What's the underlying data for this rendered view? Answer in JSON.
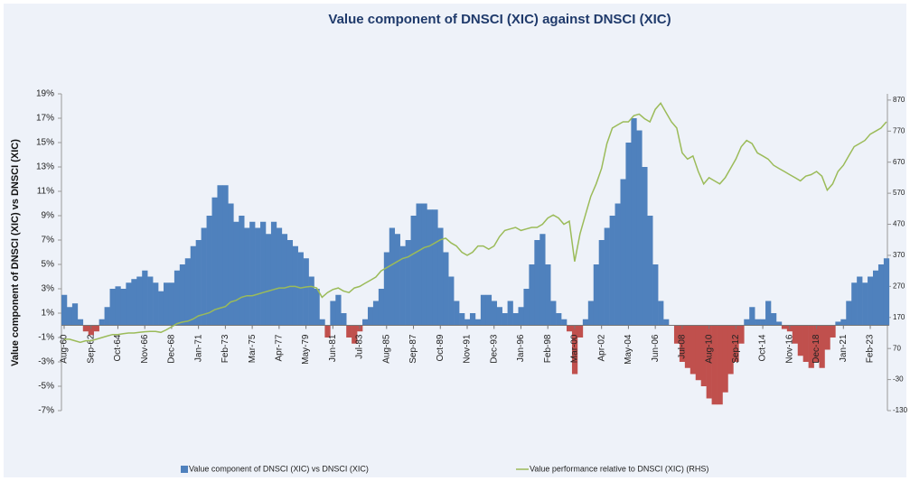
{
  "chart_data": {
    "type": "bar_line",
    "title": "Value component of DNSCI (XIC) against DNSCI (XIC)",
    "y_axis_title": "Value component of DNSCI (XIC) vs DNSCI (XIC)",
    "categories": [
      "Aug-60",
      null,
      null,
      null,
      null,
      "Sep-62",
      null,
      null,
      null,
      null,
      "Oct-64",
      null,
      null,
      null,
      null,
      "Nov-66",
      null,
      null,
      null,
      null,
      "Dec-68",
      null,
      null,
      null,
      null,
      "Jan-71",
      null,
      null,
      null,
      null,
      "Feb-73",
      null,
      null,
      null,
      null,
      "Mar-75",
      null,
      null,
      null,
      null,
      "Apr-77",
      null,
      null,
      null,
      null,
      "May-79",
      null,
      null,
      null,
      null,
      "Jun-81",
      null,
      null,
      null,
      null,
      "Jul-83",
      null,
      null,
      null,
      null,
      "Aug-85",
      null,
      null,
      null,
      null,
      "Sep-87",
      null,
      null,
      null,
      null,
      "Oct-89",
      null,
      null,
      null,
      null,
      "Nov-91",
      null,
      null,
      null,
      null,
      "Dec-93",
      null,
      null,
      null,
      null,
      "Jan-96",
      null,
      null,
      null,
      null,
      "Feb-98",
      null,
      null,
      null,
      null,
      "Mar-00",
      null,
      null,
      null,
      null,
      "Apr-02",
      null,
      null,
      null,
      null,
      "May-04",
      null,
      null,
      null,
      null,
      "Jun-06",
      null,
      null,
      null,
      null,
      "Jul-08",
      null,
      null,
      null,
      null,
      "Aug-10",
      null,
      null,
      null,
      null,
      "Sep-12",
      null,
      null,
      null,
      null,
      "Oct-14",
      null,
      null,
      null,
      null,
      "Nov-16",
      null,
      null,
      null,
      null,
      "Dec-18",
      null,
      null,
      null,
      null,
      "Jan-21",
      null,
      null,
      null,
      null,
      "Feb-23",
      null,
      null,
      null
    ],
    "series": [
      {
        "name": "Value component of DNSCI (XIC) vs DNSCI (XIC)",
        "color": "#4f81bd",
        "negative_color": "#c0504d",
        "values": [
          2.5,
          1.5,
          1.8,
          0.5,
          -0.5,
          -0.8,
          -0.5,
          0.5,
          1.5,
          3,
          3.2,
          3.0,
          3.5,
          3.8,
          4.0,
          4.5,
          4.0,
          3.5,
          2.8,
          3.5,
          3.5,
          4.5,
          5,
          5.5,
          6.5,
          7,
          8,
          9,
          10.5,
          11.5,
          11.5,
          10,
          8.5,
          9,
          8,
          8.5,
          8,
          8.5,
          7.5,
          8.5,
          8,
          7.5,
          7,
          6.5,
          6,
          5.5,
          4,
          3,
          0.5,
          -1,
          2,
          2.5,
          1,
          -1,
          -1.5,
          -0.5,
          0.5,
          1.5,
          2,
          3,
          6,
          8,
          7.5,
          6.5,
          7,
          9,
          10,
          10,
          9.5,
          9.5,
          8,
          6,
          4,
          2,
          1,
          0.5,
          1,
          0.5,
          2.5,
          2.5,
          2,
          1.5,
          1,
          2,
          1,
          1.5,
          3,
          5,
          7,
          7.5,
          5,
          2,
          1,
          0.5,
          -0.5,
          -4,
          -1,
          0.5,
          2,
          5,
          7,
          8,
          9,
          10,
          12,
          15,
          17,
          16,
          13,
          9,
          5,
          2,
          0.5,
          0,
          -1.5,
          -3,
          -3.5,
          -4,
          -4.5,
          -5,
          -6,
          -6.5,
          -6.5,
          -5.5,
          -4,
          -3,
          -1.5,
          0.5,
          1.5,
          0.5,
          0.5,
          2,
          1,
          0.3,
          -0.3,
          -0.5,
          -1.5,
          -2.5,
          -3,
          -3.5,
          -3,
          -3.5,
          -2,
          -1,
          0.3,
          0.5,
          2,
          3.5,
          4,
          3.5,
          4,
          4.5,
          5,
          5.5
        ]
      },
      {
        "name": "Value performance relative to DNSCI (XIC) (RHS)",
        "color": "#9bbb59",
        "axis": "y2",
        "values": [
          100,
          100,
          95,
          90,
          95,
          95,
          100,
          105,
          110,
          115,
          115,
          118,
          120,
          120,
          122,
          124,
          125,
          125,
          122,
          130,
          140,
          150,
          155,
          158,
          165,
          175,
          180,
          185,
          195,
          200,
          205,
          220,
          225,
          235,
          240,
          240,
          245,
          250,
          255,
          260,
          265,
          265,
          270,
          270,
          265,
          268,
          270,
          265,
          235,
          250,
          260,
          265,
          255,
          250,
          265,
          270,
          280,
          290,
          300,
          320,
          330,
          340,
          350,
          360,
          365,
          375,
          385,
          395,
          400,
          410,
          420,
          425,
          410,
          400,
          380,
          370,
          380,
          400,
          400,
          390,
          400,
          430,
          450,
          455,
          460,
          450,
          455,
          460,
          460,
          470,
          490,
          500,
          490,
          470,
          480,
          350,
          440,
          500,
          560,
          600,
          650,
          730,
          780,
          790,
          800,
          800,
          820,
          825,
          810,
          800,
          840,
          860,
          830,
          800,
          780,
          700,
          680,
          690,
          640,
          600,
          620,
          610,
          600,
          620,
          650,
          680,
          720,
          740,
          730,
          700,
          690,
          680,
          660,
          650,
          640,
          630,
          620,
          610,
          625,
          630,
          640,
          625,
          580,
          600,
          640,
          660,
          690,
          720,
          730,
          740,
          760,
          770,
          780,
          800
        ]
      }
    ],
    "ylim": [
      -7,
      19
    ],
    "yticks": [
      {
        "value": -7,
        "label": "-7%"
      },
      {
        "value": -5,
        "label": "-5%"
      },
      {
        "value": -3,
        "label": "-3%"
      },
      {
        "value": -1,
        "label": "-1%"
      },
      {
        "value": 1,
        "label": "1%"
      },
      {
        "value": 3,
        "label": "3%"
      },
      {
        "value": 5,
        "label": "5%"
      },
      {
        "value": 7,
        "label": "7%"
      },
      {
        "value": 9,
        "label": "9%"
      },
      {
        "value": 11,
        "label": "11%"
      },
      {
        "value": 13,
        "label": "13%"
      },
      {
        "value": 15,
        "label": "15%"
      },
      {
        "value": 17,
        "label": "17%"
      },
      {
        "value": 19,
        "label": "19%"
      }
    ],
    "y2lim": [
      -130,
      890
    ],
    "y2ticks": [
      -130,
      -30,
      70,
      170,
      270,
      370,
      470,
      570,
      670,
      770,
      870
    ],
    "grid": false,
    "legend": "bottom"
  }
}
